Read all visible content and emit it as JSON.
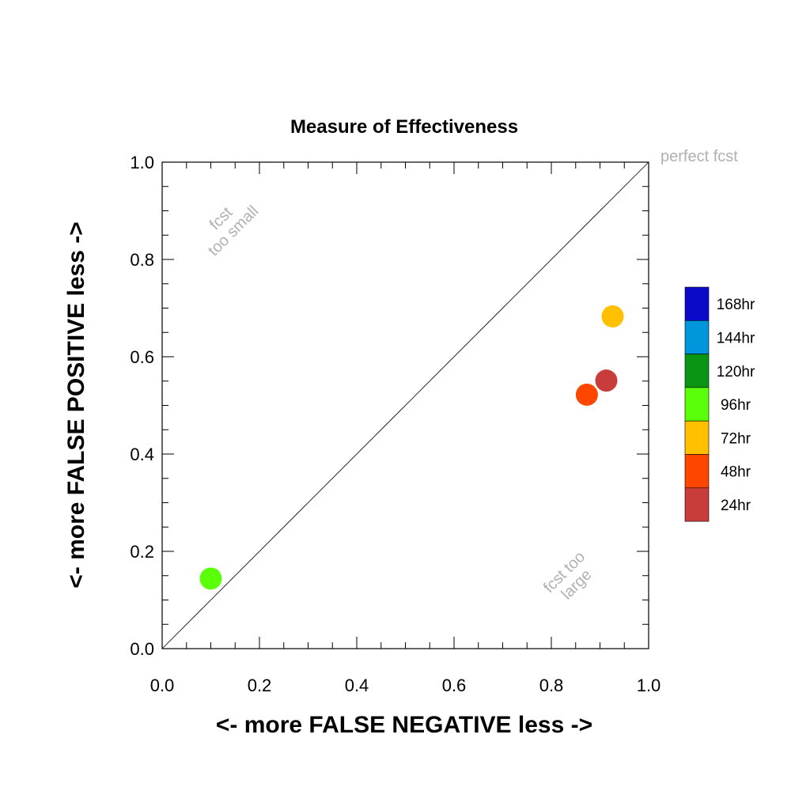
{
  "chart_data": {
    "type": "scatter",
    "title": "Measure of Effectiveness",
    "xlabel": "<- more   FALSE NEGATIVE   less ->",
    "ylabel": "<- more   FALSE POSITIVE   less ->",
    "xlim": [
      0.0,
      1.0
    ],
    "ylim": [
      0.0,
      1.0
    ],
    "xticks": [
      "0.0",
      "0.2",
      "0.4",
      "0.6",
      "0.8",
      "1.0"
    ],
    "yticks": [
      "0.0",
      "0.2",
      "0.4",
      "0.6",
      "0.8",
      "1.0"
    ],
    "grid": false,
    "diagonal_reference": true,
    "annotations": {
      "perfect": "perfect fcst",
      "small_line1": "fcst",
      "small_line2": "too small",
      "large_line1": "fcst too",
      "large_line2": "large"
    },
    "legend": [
      {
        "label": "168hr",
        "color": "#0a0ac8"
      },
      {
        "label": "144hr",
        "color": "#0096dc"
      },
      {
        "label": "120hr",
        "color": "#0a9614"
      },
      {
        "label": "96hr",
        "color": "#5aff0a"
      },
      {
        "label": "72hr",
        "color": "#ffc000"
      },
      {
        "label": "48hr",
        "color": "#ff4600"
      },
      {
        "label": "24hr",
        "color": "#c83c3c"
      }
    ],
    "legend_position": "right",
    "points": [
      {
        "label": "96hr",
        "x": 0.1,
        "y": 0.144,
        "color": "#5aff0a"
      },
      {
        "label": "72hr",
        "x": 0.926,
        "y": 0.683,
        "color": "#ffc000"
      },
      {
        "label": "48hr",
        "x": 0.873,
        "y": 0.522,
        "color": "#ff4600"
      },
      {
        "label": "24hr",
        "x": 0.913,
        "y": 0.551,
        "color": "#c83c3c"
      }
    ]
  }
}
